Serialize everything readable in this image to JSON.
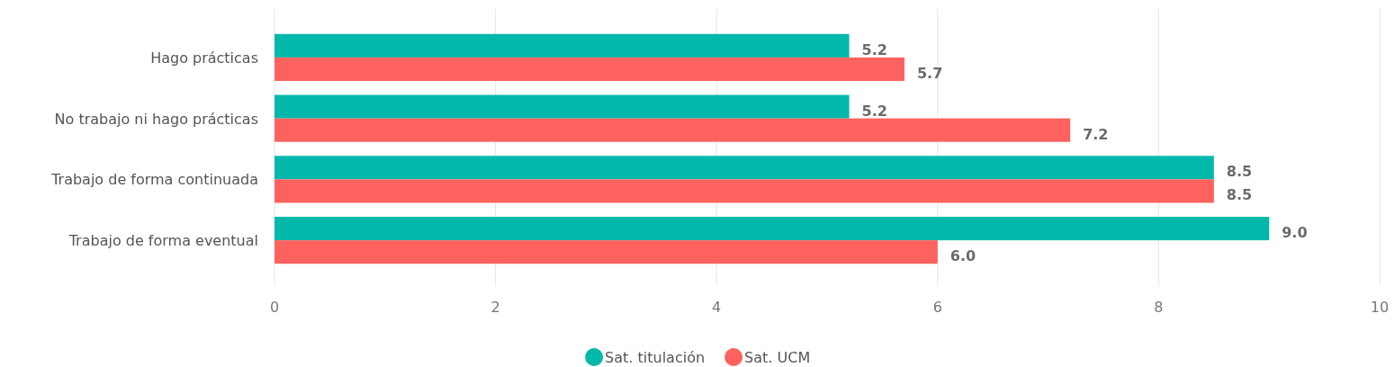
{
  "chart_data": {
    "type": "bar",
    "orientation": "horizontal",
    "categories": [
      "Hago prácticas",
      "No trabajo ni hago prácticas",
      "Trabajo de forma continuada",
      "Trabajo de forma eventual"
    ],
    "series": [
      {
        "name": "Sat. titulación",
        "color": "#01b8aa",
        "values": [
          5.2,
          5.2,
          8.5,
          9.0
        ],
        "value_labels": [
          "5.2",
          "5.2",
          "8.5",
          "9.0"
        ]
      },
      {
        "name": "Sat. UCM",
        "color": "#fd625e",
        "values": [
          5.7,
          7.2,
          8.5,
          6.0
        ],
        "value_labels": [
          "5.7",
          "7.2",
          "8.5",
          "6.0"
        ]
      }
    ],
    "xlim": [
      0,
      10
    ],
    "xticks": [
      0,
      2,
      4,
      6,
      8,
      10
    ],
    "grid": "x",
    "legend": "bottom"
  }
}
